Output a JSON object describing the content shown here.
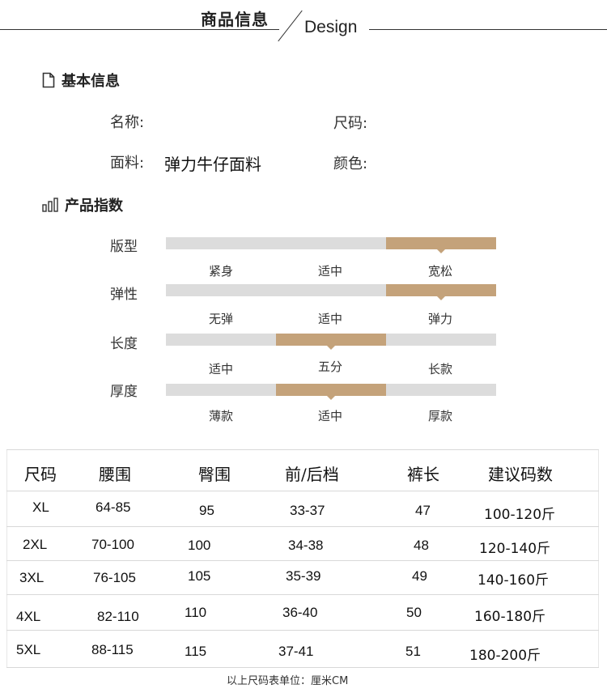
{
  "header": {
    "title": "商品信息",
    "subtitle": "Design"
  },
  "basic_info": {
    "heading": "基本信息",
    "name_label": "名称:",
    "size_label": "尺码:",
    "fabric_label": "面料:",
    "fabric_value": "弹力牛仔面料",
    "color_label": "颜色:"
  },
  "index": {
    "heading": "产品指数",
    "rows": [
      {
        "label": "版型",
        "options": [
          "紧身",
          "适中",
          "宽松"
        ],
        "selected": 2
      },
      {
        "label": "弹性",
        "options": [
          "无弹",
          "适中",
          "弹力"
        ],
        "selected": 2
      },
      {
        "label": "长度",
        "options": [
          "适中",
          "五分",
          "长款"
        ],
        "selected": 1
      },
      {
        "label": "厚度",
        "options": [
          "薄款",
          "适中",
          "厚款"
        ],
        "selected": 1
      }
    ],
    "colors": {
      "track": "#dcdcdc",
      "fill": "#c4a27a"
    }
  },
  "size_table": {
    "headers": [
      "尺码",
      "腰围",
      "臀围",
      "前/后档",
      "裤长",
      "建议码数"
    ],
    "rows": [
      [
        "XL",
        "64-85",
        "95",
        "33-37",
        "47",
        "100-120斤"
      ],
      [
        "2XL",
        "70-100",
        "100",
        "34-38",
        "48",
        "120-140斤"
      ],
      [
        "3XL",
        "76-105",
        "105",
        "35-39",
        "49",
        "140-160斤"
      ],
      [
        "4XL",
        "82-110",
        "110",
        "36-40",
        "50",
        "160-180斤"
      ],
      [
        "5XL",
        "88-115",
        "115",
        "37-41",
        "51",
        "180-200斤"
      ]
    ],
    "note": "以上尺码表单位：厘米CM"
  }
}
